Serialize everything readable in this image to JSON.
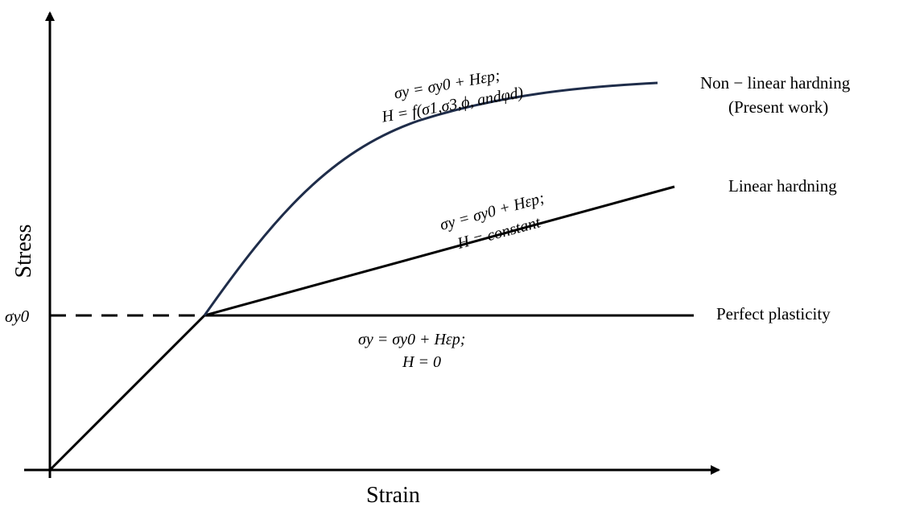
{
  "diagram": {
    "x_axis_label": "Strain",
    "y_axis_label": "Stress",
    "yield_label": "σy0",
    "curves": [
      {
        "id": "nonlinear",
        "label_line1": "Non − linear hardning",
        "label_line2": "(Present work)",
        "eq_line1": "σy = σy0 + Hεp;",
        "eq_line2": "H = f(σ1,σ3,ϕ, andφd)",
        "color": "#1f2d4a"
      },
      {
        "id": "linear",
        "label_line1": "Linear hardning",
        "eq_line1": "σy = σy0 + Hεp;",
        "eq_line2": "H = constant",
        "color": "#000000"
      },
      {
        "id": "perfect",
        "label_line1": "Perfect plasticity",
        "eq_line1": "σy = σy0 + Hεp;",
        "eq_line2": "H = 0",
        "color": "#000000"
      }
    ]
  }
}
